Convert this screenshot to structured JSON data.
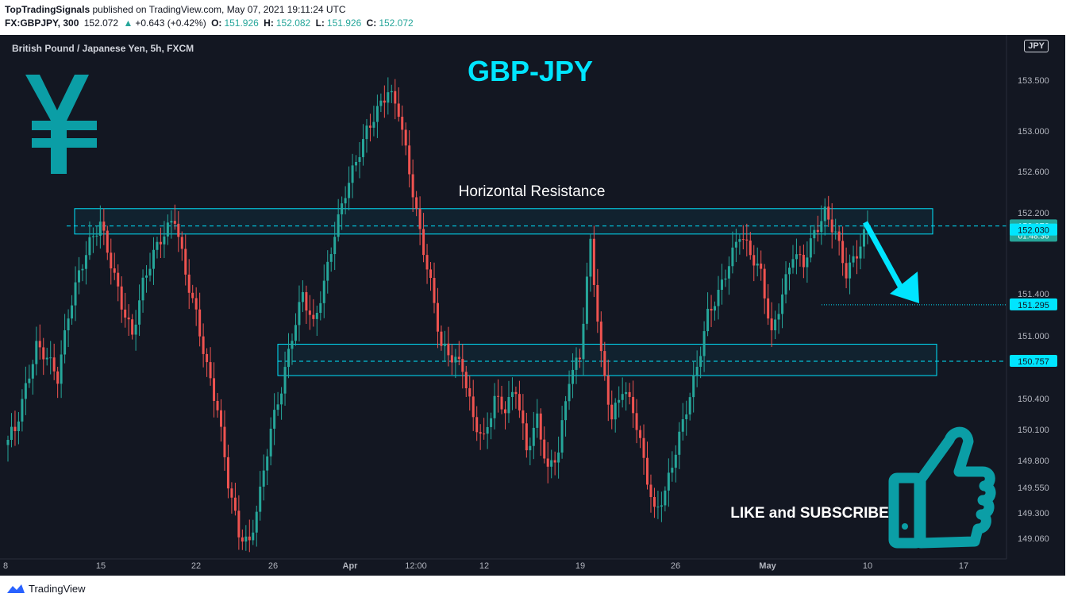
{
  "header": {
    "publisher": "TopTradingSignals",
    "published_text": "published on TradingView.com, May 07, 2021 19:11:24 UTC",
    "symbol": "FX:GBPJPY, 300",
    "last": "152.072",
    "change": "+0.643 (+0.42%)",
    "open_label": "O:",
    "open": "151.926",
    "high_label": "H:",
    "high": "152.082",
    "low_label": "L:",
    "low": "151.926",
    "close_label": "C:",
    "close": "152.072"
  },
  "symbol_description": "British Pound / Japanese Yen, 5h, FXCM",
  "currency_badge": "JPY",
  "footer": {
    "brand": "TradingView"
  },
  "colors": {
    "up": "#26a69a",
    "down": "#ef5350",
    "annotation": "#00e5ff",
    "background": "#131722"
  },
  "chart_data": {
    "type": "candlestick",
    "title": "GBP-JPY",
    "y_ticks": [
      "153.500",
      "153.000",
      "152.600",
      "152.200",
      "151.400",
      "151.000",
      "150.400",
      "150.100",
      "149.800",
      "149.550",
      "149.300",
      "149.060"
    ],
    "x_ticks": [
      "8",
      "15",
      "22",
      "26",
      "Apr",
      "12:00",
      "12",
      "19",
      "26",
      "May",
      "10",
      "17"
    ],
    "price_labels": [
      {
        "value": "152.072",
        "sub": "01:48:36",
        "kind": "last"
      },
      {
        "value": "152.030",
        "kind": "zone"
      },
      {
        "value": "151.295",
        "kind": "target"
      },
      {
        "value": "150.757",
        "kind": "zone"
      }
    ],
    "zones": [
      {
        "label": "Horizontal Resistance",
        "top": 152.24,
        "bottom": 151.99,
        "mid": 152.07
      },
      {
        "label": "",
        "top": 150.92,
        "bottom": 150.62,
        "mid": 150.757
      }
    ],
    "annotations": {
      "resistance_label": "Horizontal Resistance",
      "cta": "LIKE and SUBSCRIBE"
    },
    "close_series": [
      150.1,
      150.5,
      150.9,
      150.8,
      150.6,
      151.2,
      151.6,
      151.9,
      152.1,
      151.7,
      151.3,
      151.0,
      151.5,
      151.8,
      152.0,
      152.15,
      151.6,
      151.2,
      150.7,
      150.3,
      149.6,
      149.1,
      149.0,
      149.5,
      150.1,
      150.5,
      151.0,
      151.4,
      151.1,
      151.5,
      152.0,
      152.4,
      152.7,
      153.0,
      153.2,
      153.4,
      153.2,
      152.6,
      152.0,
      151.5,
      150.9,
      150.8,
      150.7,
      150.2,
      150.0,
      150.4,
      150.3,
      150.5,
      149.9,
      150.2,
      149.7,
      149.9,
      150.6,
      150.8,
      151.9,
      150.8,
      150.2,
      150.5,
      150.3,
      149.8,
      149.3,
      149.5,
      149.9,
      150.3,
      150.7,
      151.2,
      151.4,
      151.7,
      152.0,
      151.8,
      151.6,
      151.0,
      151.4,
      151.8,
      151.7,
      152.0,
      152.2,
      152.0,
      151.6,
      151.8,
      152.07
    ]
  }
}
